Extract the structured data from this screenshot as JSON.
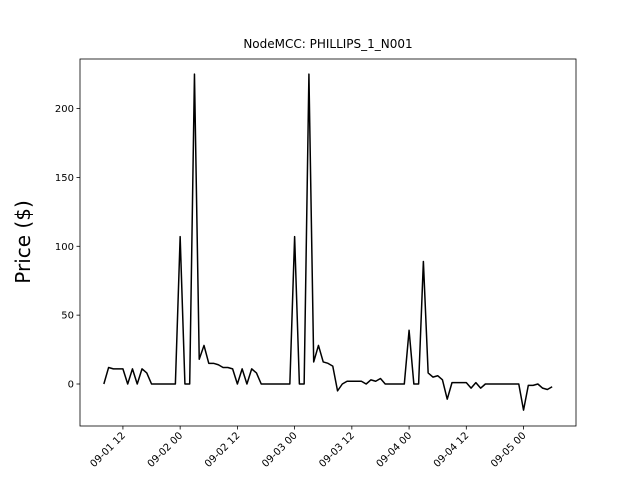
{
  "chart_data": {
    "type": "line",
    "title": "NodeMCC: PHILLIPS_1_N001",
    "ylabel": "Price ($)",
    "x": [
      "09-01 08",
      "09-01 09",
      "09-01 10",
      "09-01 11",
      "09-01 12",
      "09-01 13",
      "09-01 14",
      "09-01 15",
      "09-01 16",
      "09-01 17",
      "09-01 18",
      "09-01 19",
      "09-01 20",
      "09-01 21",
      "09-01 22",
      "09-01 23",
      "09-02 00",
      "09-02 01",
      "09-02 02",
      "09-02 03",
      "09-02 04",
      "09-02 05",
      "09-02 06",
      "09-02 07",
      "09-02 08",
      "09-02 09",
      "09-02 10",
      "09-02 11",
      "09-02 12",
      "09-02 13",
      "09-02 14",
      "09-02 15",
      "09-02 16",
      "09-02 17",
      "09-02 18",
      "09-02 19",
      "09-02 20",
      "09-02 21",
      "09-02 22",
      "09-02 23",
      "09-03 00",
      "09-03 01",
      "09-03 02",
      "09-03 03",
      "09-03 04",
      "09-03 05",
      "09-03 06",
      "09-03 07",
      "09-03 08",
      "09-03 09",
      "09-03 10",
      "09-03 11",
      "09-03 12",
      "09-03 13",
      "09-03 14",
      "09-03 15",
      "09-03 16",
      "09-03 17",
      "09-03 18",
      "09-03 19",
      "09-03 20",
      "09-03 21",
      "09-03 22",
      "09-03 23",
      "09-04 00",
      "09-04 01",
      "09-04 02",
      "09-04 03",
      "09-04 04",
      "09-04 05",
      "09-04 06",
      "09-04 07",
      "09-04 08",
      "09-04 09",
      "09-04 10",
      "09-04 11",
      "09-04 12",
      "09-04 13",
      "09-04 14",
      "09-04 15",
      "09-04 16",
      "09-04 17",
      "09-04 18",
      "09-04 19",
      "09-04 20",
      "09-04 21",
      "09-04 22",
      "09-04 23",
      "09-05 00",
      "09-05 01",
      "09-05 02",
      "09-05 03",
      "09-05 04",
      "09-05 05",
      "09-05 06"
    ],
    "series": [
      {
        "name": "PHILLIPS_1_N001",
        "color": "#000000",
        "values": [
          0,
          12,
          11,
          11,
          11,
          0,
          11,
          0,
          11,
          8,
          0,
          0,
          0,
          0,
          0,
          0,
          107,
          0,
          0,
          225,
          18,
          28,
          15,
          15,
          14,
          12,
          12,
          11,
          0,
          11,
          0,
          11,
          8,
          0,
          0,
          0,
          0,
          0,
          0,
          0,
          107,
          0,
          0,
          225,
          16,
          28,
          16,
          15,
          13,
          -5,
          0,
          2,
          2,
          2,
          2,
          0,
          3,
          2,
          4,
          0,
          0,
          0,
          0,
          0,
          39,
          0,
          0,
          89,
          8,
          5,
          6,
          3,
          -11,
          1,
          1,
          1,
          1,
          -3,
          1,
          -3,
          0,
          0,
          0,
          0,
          0,
          0,
          0,
          0,
          -19,
          -1,
          -1,
          0,
          -3,
          -4,
          -2
        ]
      }
    ],
    "xlim": [
      "09-01 03",
      "09-05 11"
    ],
    "xticks": [
      "09-01 12",
      "09-02 00",
      "09-02 12",
      "09-03 00",
      "09-03 12",
      "09-04 00",
      "09-04 12",
      "09-05 00"
    ],
    "ylim": [
      -30.5,
      236
    ],
    "yticks": [
      0,
      50,
      100,
      150,
      200
    ]
  }
}
